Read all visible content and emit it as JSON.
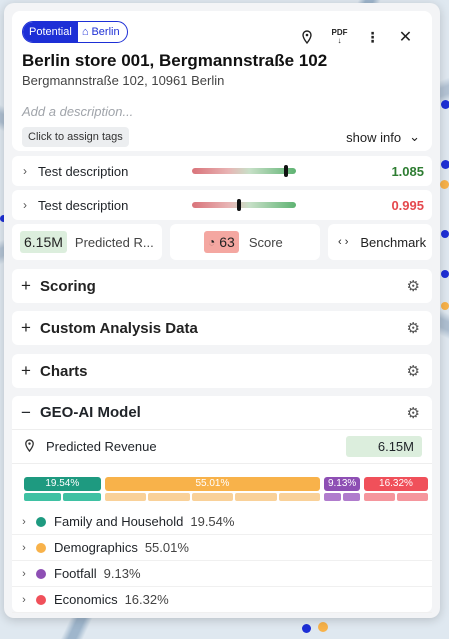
{
  "header": {
    "status_label": "Potential",
    "location_label": "Berlin",
    "title": "Berlin store 001, Bergmannstraße 102",
    "address": "Bergmannstraße 102, 10961 Berlin",
    "description_placeholder": "Add a description...",
    "assign_tags_label": "Click to assign tags",
    "show_info_label": "show info",
    "pdf_label": "PDF"
  },
  "metrics": [
    {
      "label": "Test description",
      "value": "1.085",
      "marker_fraction": 0.9,
      "color": "#2e7d32"
    },
    {
      "label": "Test description",
      "value": "0.995",
      "marker_fraction": 0.45,
      "color": "#e5484d"
    }
  ],
  "kpis": {
    "predicted_value": "6.15M",
    "predicted_label": "Predicted R...",
    "score_value": "63",
    "score_label": "Score",
    "benchmark_label": "Benchmark"
  },
  "sections": {
    "scoring": "Scoring",
    "custom": "Custom Analysis Data",
    "charts": "Charts",
    "geo": "GEO-AI Model"
  },
  "geo": {
    "predicted_label": "Predicted Revenue",
    "predicted_value": "6.15M",
    "segments": [
      {
        "label": "19.54%",
        "fraction": 0.1954,
        "color": "#1e9a80",
        "sub_color": "#3fc1a3"
      },
      {
        "label": "55.01%",
        "fraction": 0.5501,
        "color": "#f8b24a",
        "sub_color": "#f9d199"
      },
      {
        "label": "9.13%",
        "fraction": 0.0913,
        "color": "#8e4fb4",
        "sub_color": "#b07ccd"
      },
      {
        "label": "16.32%",
        "fraction": 0.1632,
        "color": "#f0505a",
        "sub_color": "#f5969d"
      }
    ],
    "categories": [
      {
        "name": "Family and Household",
        "pct": "19.54%",
        "color": "#1e9a80"
      },
      {
        "name": "Demographics",
        "pct": "55.01%",
        "color": "#f8b24a"
      },
      {
        "name": "Footfall",
        "pct": "9.13%",
        "color": "#8e4fb4"
      },
      {
        "name": "Economics",
        "pct": "16.32%",
        "color": "#f0505a"
      }
    ]
  }
}
